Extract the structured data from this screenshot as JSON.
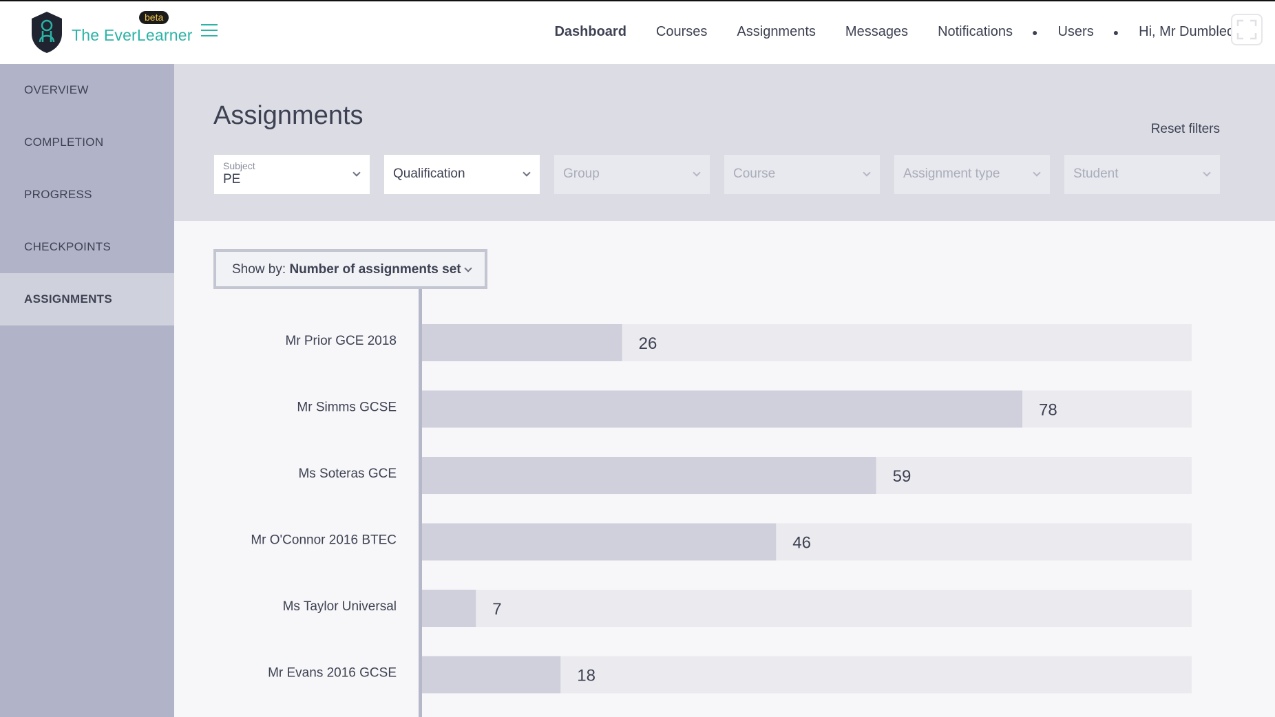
{
  "header": {
    "brand": "The EverLearner",
    "beta": "beta",
    "nav": [
      "Dashboard",
      "Courses",
      "Assignments",
      "Messages",
      "Notifications",
      "Users"
    ],
    "greeting": "Hi, Mr Dumbledore"
  },
  "sidebar": {
    "items": [
      "OVERVIEW",
      "COMPLETION",
      "PROGRESS",
      "CHECKPOINTS",
      "ASSIGNMENTS"
    ],
    "active": "ASSIGNMENTS"
  },
  "page": {
    "title": "Assignments",
    "reset_label": "Reset filters"
  },
  "filters": {
    "subject": {
      "label": "Subject",
      "value": "PE"
    },
    "qualification": "Qualification",
    "group": "Group",
    "course": "Course",
    "assignment_type": "Assignment type",
    "student": "Student"
  },
  "showby": {
    "prefix": "Show by:",
    "value": "Number of assignments set"
  },
  "colors": {
    "bar_fill": "#cfd0dc",
    "bar_track": "#ebebef",
    "accent": "#2bb3a6"
  },
  "chart_data": {
    "type": "bar",
    "orientation": "horizontal",
    "categories": [
      "Mr Prior GCE 2018",
      "Mr Simms GCSE",
      "Ms Soteras GCE",
      "Mr O'Connor 2016 BTEC",
      "Ms Taylor Universal",
      "Mr Evans 2016 GCSE"
    ],
    "values": [
      26,
      78,
      59,
      46,
      7,
      18
    ],
    "xlim": [
      0,
      100
    ]
  }
}
